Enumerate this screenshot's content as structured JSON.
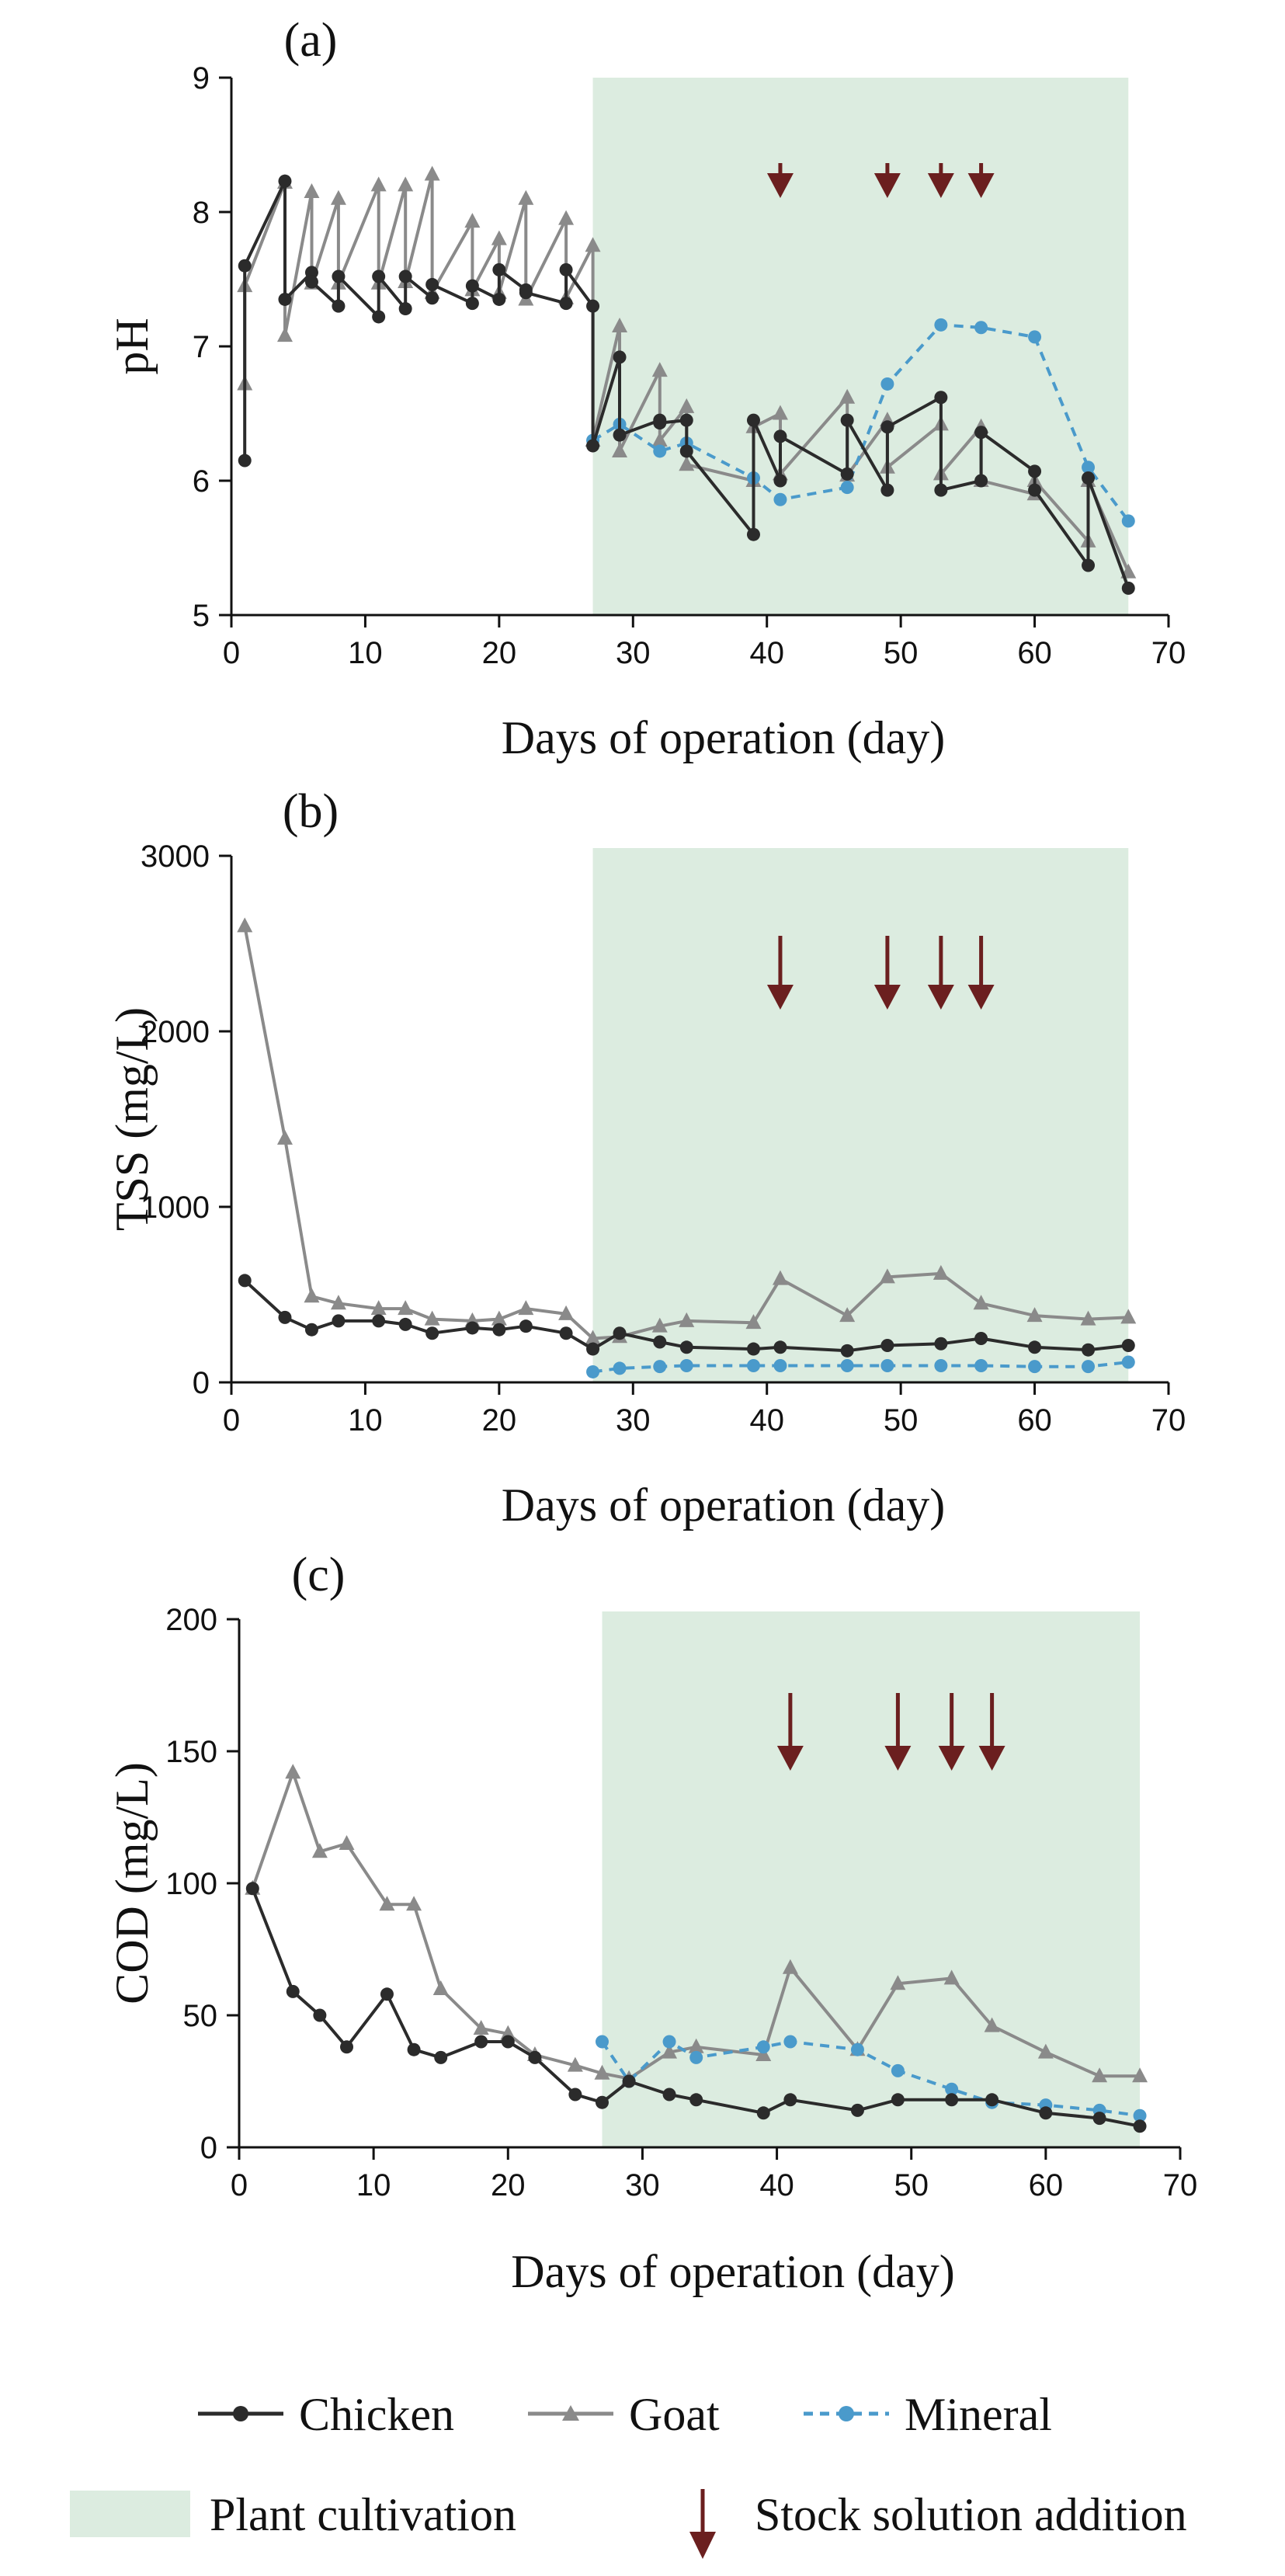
{
  "colors": {
    "chicken": "#2b2b2b",
    "goat": "#8a8a8a",
    "mineral": "#4a9acb",
    "shade": "#dcece0",
    "arrow": "#6b1f1f"
  },
  "legend": {
    "chicken": "Chicken",
    "goat": "Goat",
    "mineral": "Mineral",
    "plant": "Plant cultivation",
    "stock": "Stock solution addition"
  },
  "chart_data": [
    {
      "type": "line",
      "panel_label": "(a)",
      "title": "",
      "xlabel": "Days of operation (day)",
      "ylabel": "pH",
      "xlim": [
        0,
        70
      ],
      "ylim": [
        5,
        9
      ],
      "xticks": [
        0,
        10,
        20,
        30,
        40,
        50,
        60,
        70
      ],
      "yticks": [
        5,
        6,
        7,
        8,
        9
      ],
      "shaded_region": {
        "label": "Plant cultivation",
        "x": [
          27,
          67
        ]
      },
      "stock_additions": [
        41,
        49,
        53,
        56
      ],
      "series": [
        {
          "name": "Chicken",
          "x": [
            1,
            1,
            4,
            4,
            6,
            6,
            8,
            8,
            11,
            11,
            13,
            13,
            15,
            15,
            18,
            18,
            20,
            20,
            22,
            22,
            25,
            25,
            27,
            27,
            29,
            29,
            32,
            32,
            34,
            34,
            39,
            39,
            41,
            41,
            46,
            46,
            49,
            49,
            53,
            53,
            56,
            56,
            60,
            60,
            64,
            64,
            67
          ],
          "y": [
            6.15,
            7.6,
            8.23,
            7.35,
            7.55,
            7.48,
            7.3,
            7.52,
            7.22,
            7.52,
            7.28,
            7.52,
            7.36,
            7.46,
            7.32,
            7.45,
            7.35,
            7.57,
            7.42,
            7.4,
            7.32,
            7.57,
            7.3,
            6.26,
            6.92,
            6.34,
            6.45,
            6.43,
            6.45,
            6.22,
            5.6,
            6.45,
            6.0,
            6.33,
            6.05,
            6.45,
            5.93,
            6.4,
            6.62,
            5.93,
            6.0,
            6.36,
            6.07,
            5.93,
            5.37,
            6.02,
            5.2
          ]
        },
        {
          "name": "Goat",
          "x": [
            1,
            1,
            4,
            4,
            6,
            6,
            8,
            8,
            11,
            11,
            13,
            13,
            15,
            15,
            18,
            18,
            20,
            20,
            22,
            22,
            25,
            25,
            27,
            27,
            29,
            29,
            32,
            32,
            34,
            34,
            39,
            39,
            41,
            41,
            46,
            46,
            49,
            49,
            53,
            53,
            56,
            56,
            60,
            60,
            64,
            64,
            67
          ],
          "y": [
            6.72,
            7.45,
            8.22,
            7.08,
            8.15,
            7.47,
            8.1,
            7.47,
            8.2,
            7.47,
            8.2,
            7.48,
            8.28,
            7.4,
            7.93,
            7.42,
            7.8,
            7.4,
            8.1,
            7.35,
            7.95,
            7.36,
            7.75,
            6.3,
            7.15,
            6.22,
            6.82,
            6.3,
            6.55,
            6.12,
            6.0,
            6.4,
            6.5,
            6.05,
            6.62,
            6.04,
            6.45,
            6.1,
            6.42,
            6.05,
            6.4,
            6.0,
            5.9,
            6.0,
            5.55,
            6.0,
            5.32
          ]
        },
        {
          "name": "Mineral",
          "x": [
            27,
            29,
            32,
            34,
            39,
            41,
            46,
            49,
            53,
            56,
            60,
            64,
            67
          ],
          "y": [
            6.3,
            6.42,
            6.22,
            6.28,
            6.02,
            5.86,
            5.95,
            6.72,
            7.16,
            7.14,
            7.07,
            6.1,
            5.7
          ]
        }
      ]
    },
    {
      "type": "line",
      "panel_label": "(b)",
      "title": "",
      "xlabel": "Days of operation (day)",
      "ylabel": "TSS (mg/L)",
      "xlim": [
        0,
        70
      ],
      "ylim": [
        0,
        3000
      ],
      "xticks": [
        0,
        10,
        20,
        30,
        40,
        50,
        60,
        70
      ],
      "yticks": [
        0,
        1000,
        2000,
        3000
      ],
      "shaded_region": {
        "label": "Plant cultivation",
        "x": [
          27,
          67
        ]
      },
      "stock_additions": [
        41,
        49,
        53,
        56
      ],
      "series": [
        {
          "name": "Chicken",
          "x": [
            1,
            4,
            6,
            8,
            11,
            13,
            15,
            18,
            20,
            22,
            25,
            27,
            29,
            32,
            34,
            39,
            41,
            46,
            49,
            53,
            56,
            60,
            64,
            67
          ],
          "y": [
            580,
            370,
            300,
            350,
            350,
            330,
            280,
            310,
            300,
            320,
            280,
            190,
            280,
            230,
            200,
            190,
            200,
            180,
            210,
            220,
            250,
            200,
            185,
            210
          ]
        },
        {
          "name": "Goat",
          "x": [
            1,
            4,
            6,
            8,
            11,
            13,
            15,
            18,
            20,
            22,
            25,
            27,
            29,
            32,
            34,
            39,
            41,
            46,
            49,
            53,
            56,
            60,
            64,
            67
          ],
          "y": [
            2600,
            1390,
            490,
            450,
            420,
            420,
            360,
            350,
            360,
            420,
            390,
            250,
            260,
            320,
            350,
            340,
            590,
            380,
            600,
            620,
            450,
            380,
            360,
            370
          ]
        },
        {
          "name": "Mineral",
          "x": [
            27,
            29,
            32,
            34,
            39,
            41,
            46,
            49,
            53,
            56,
            60,
            64,
            67
          ],
          "y": [
            60,
            80,
            90,
            95,
            95,
            95,
            95,
            95,
            95,
            95,
            90,
            90,
            115
          ]
        }
      ]
    },
    {
      "type": "line",
      "panel_label": "(c)",
      "title": "",
      "xlabel": "Days of operation (day)",
      "ylabel": "COD (mg/L)",
      "xlim": [
        0,
        70
      ],
      "ylim": [
        0,
        200
      ],
      "xticks": [
        0,
        10,
        20,
        30,
        40,
        50,
        60,
        70
      ],
      "yticks": [
        0,
        50,
        100,
        150,
        200
      ],
      "shaded_region": {
        "label": "Plant cultivation",
        "x": [
          27,
          67
        ]
      },
      "stock_additions": [
        41,
        49,
        53,
        56
      ],
      "series": [
        {
          "name": "Chicken",
          "x": [
            1,
            4,
            6,
            8,
            11,
            13,
            15,
            18,
            20,
            22,
            25,
            27,
            29,
            32,
            34,
            39,
            41,
            46,
            49,
            53,
            56,
            60,
            64,
            67
          ],
          "y": [
            98,
            59,
            50,
            38,
            58,
            37,
            34,
            40,
            40,
            34,
            20,
            17,
            25,
            20,
            18,
            13,
            18,
            14,
            18,
            18,
            18,
            13,
            11,
            8
          ]
        },
        {
          "name": "Goat",
          "x": [
            1,
            4,
            6,
            8,
            11,
            13,
            15,
            18,
            20,
            22,
            25,
            27,
            29,
            32,
            34,
            39,
            41,
            46,
            49,
            53,
            56,
            60,
            64,
            67
          ],
          "y": [
            98,
            142,
            112,
            115,
            92,
            92,
            60,
            45,
            43,
            35,
            31,
            28,
            26,
            36,
            38,
            35,
            68,
            37,
            62,
            64,
            46,
            36,
            27,
            27
          ]
        },
        {
          "name": "Mineral",
          "x": [
            27,
            29,
            32,
            34,
            39,
            41,
            46,
            49,
            53,
            56,
            60,
            64,
            67
          ],
          "y": [
            40,
            25,
            40,
            34,
            38,
            40,
            37,
            29,
            22,
            17,
            16,
            14,
            12
          ]
        }
      ]
    }
  ]
}
